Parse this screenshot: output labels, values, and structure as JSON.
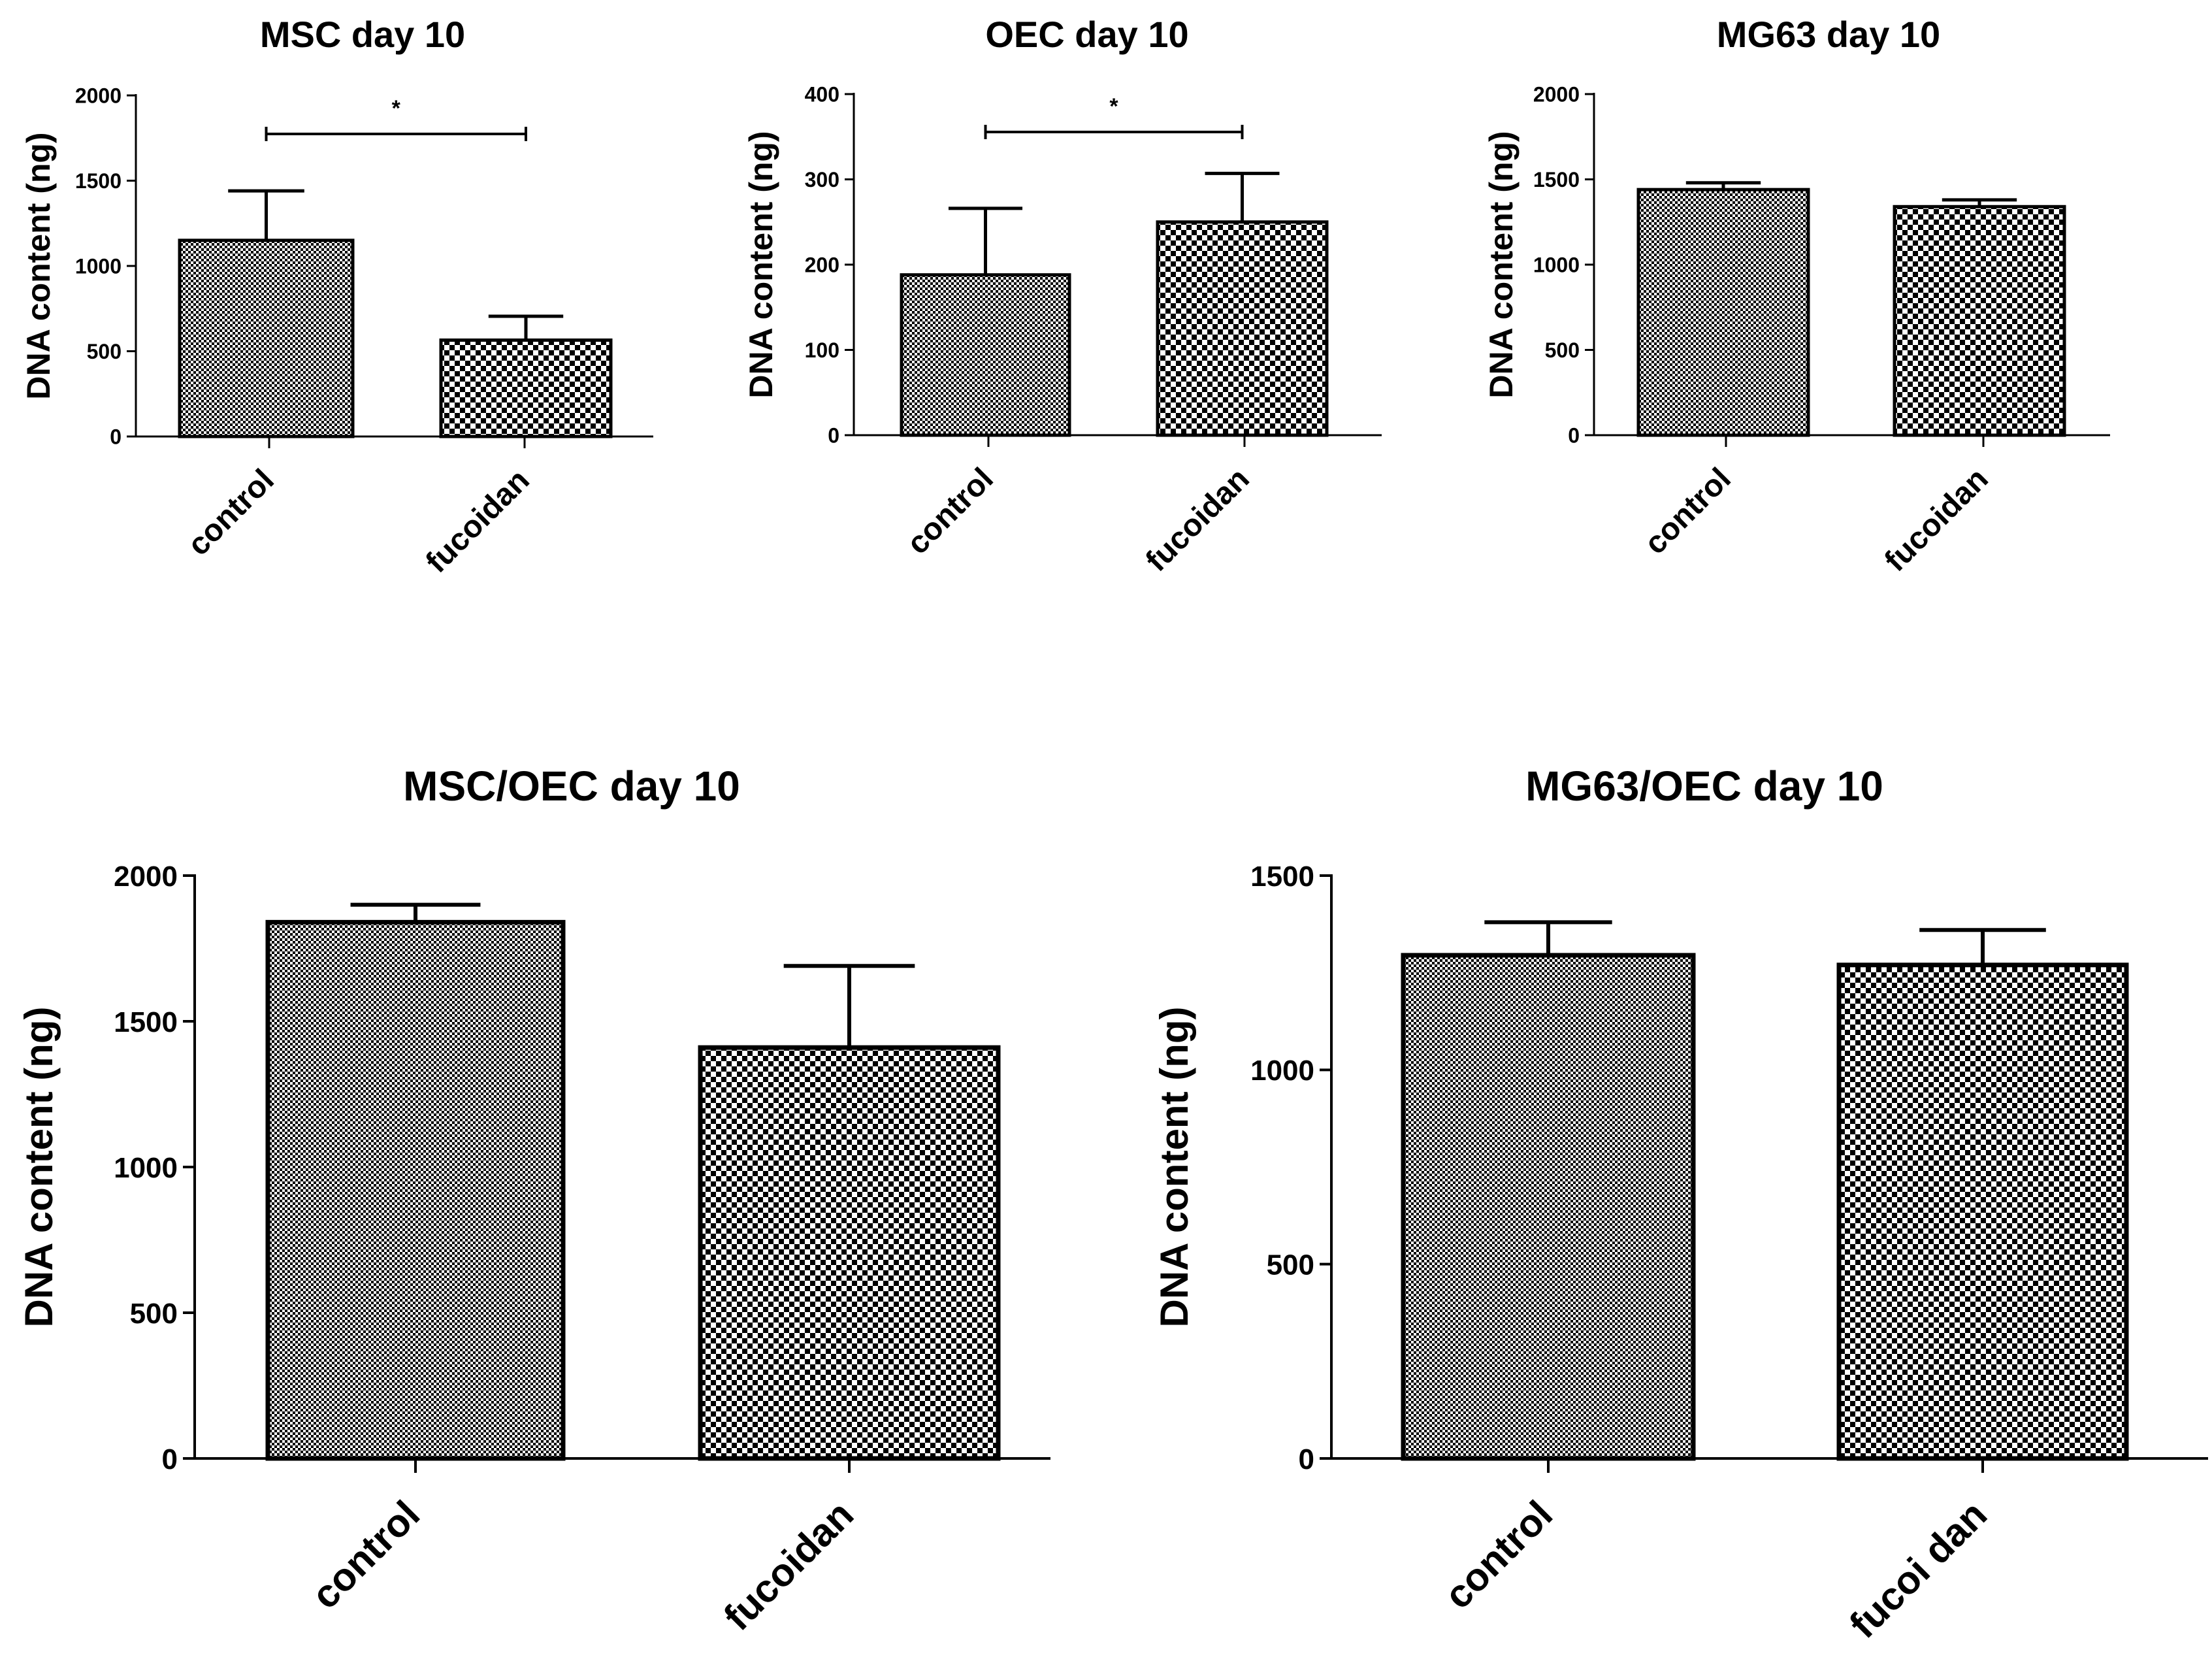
{
  "figure": {
    "background": "#ffffff",
    "ink": "#000000"
  },
  "chart_data": [
    {
      "type": "bar",
      "title": "MSC day 10",
      "ylabel": "DNA content (ng)",
      "xlabel": "",
      "categories": [
        "control",
        "fucoidan"
      ],
      "values": [
        1150,
        565
      ],
      "errors": [
        290,
        140
      ],
      "ylim": [
        0,
        2000
      ],
      "yticks": [
        0,
        500,
        1000,
        1500,
        2000
      ],
      "significance": [
        {
          "from": 0,
          "to": 1,
          "label": "*"
        }
      ],
      "patterns": [
        "fine-check",
        "coarse-check"
      ]
    },
    {
      "type": "bar",
      "title": "OEC day 10",
      "ylabel": "DNA content (ng)",
      "xlabel": "",
      "categories": [
        "control",
        "fucoidan"
      ],
      "values": [
        188,
        250
      ],
      "errors": [
        78,
        57
      ],
      "ylim": [
        0,
        400
      ],
      "yticks": [
        0,
        100,
        200,
        300,
        400
      ],
      "significance": [
        {
          "from": 0,
          "to": 1,
          "label": "*"
        }
      ],
      "patterns": [
        "fine-check",
        "coarse-check"
      ]
    },
    {
      "type": "bar",
      "title": "MG63 day 10",
      "ylabel": "DNA content (ng)",
      "xlabel": "",
      "categories": [
        "control",
        "fucoidan"
      ],
      "values": [
        1440,
        1340
      ],
      "errors": [
        40,
        40
      ],
      "ylim": [
        0,
        2000
      ],
      "yticks": [
        0,
        500,
        1000,
        1500,
        2000
      ],
      "significance": [],
      "patterns": [
        "fine-check",
        "coarse-check"
      ]
    },
    {
      "type": "bar",
      "title": "MSC/OEC day 10",
      "ylabel": "DNA content (ng)",
      "xlabel": "",
      "categories": [
        "control",
        "fucoidan"
      ],
      "values": [
        1840,
        1410
      ],
      "errors": [
        60,
        280
      ],
      "ylim": [
        0,
        2000
      ],
      "yticks": [
        0,
        500,
        1000,
        1500,
        2000
      ],
      "significance": [],
      "patterns": [
        "fine-check",
        "coarse-check"
      ]
    },
    {
      "type": "bar",
      "title": "MG63/OEC day 10",
      "ylabel": "DNA content (ng)",
      "xlabel": "",
      "categories": [
        "control",
        "fucoi dan"
      ],
      "values": [
        1295,
        1270
      ],
      "errors": [
        85,
        90
      ],
      "ylim": [
        0,
        1500
      ],
      "yticks": [
        0,
        500,
        1000,
        1500
      ],
      "significance": [],
      "patterns": [
        "fine-check",
        "coarse-check"
      ]
    }
  ]
}
